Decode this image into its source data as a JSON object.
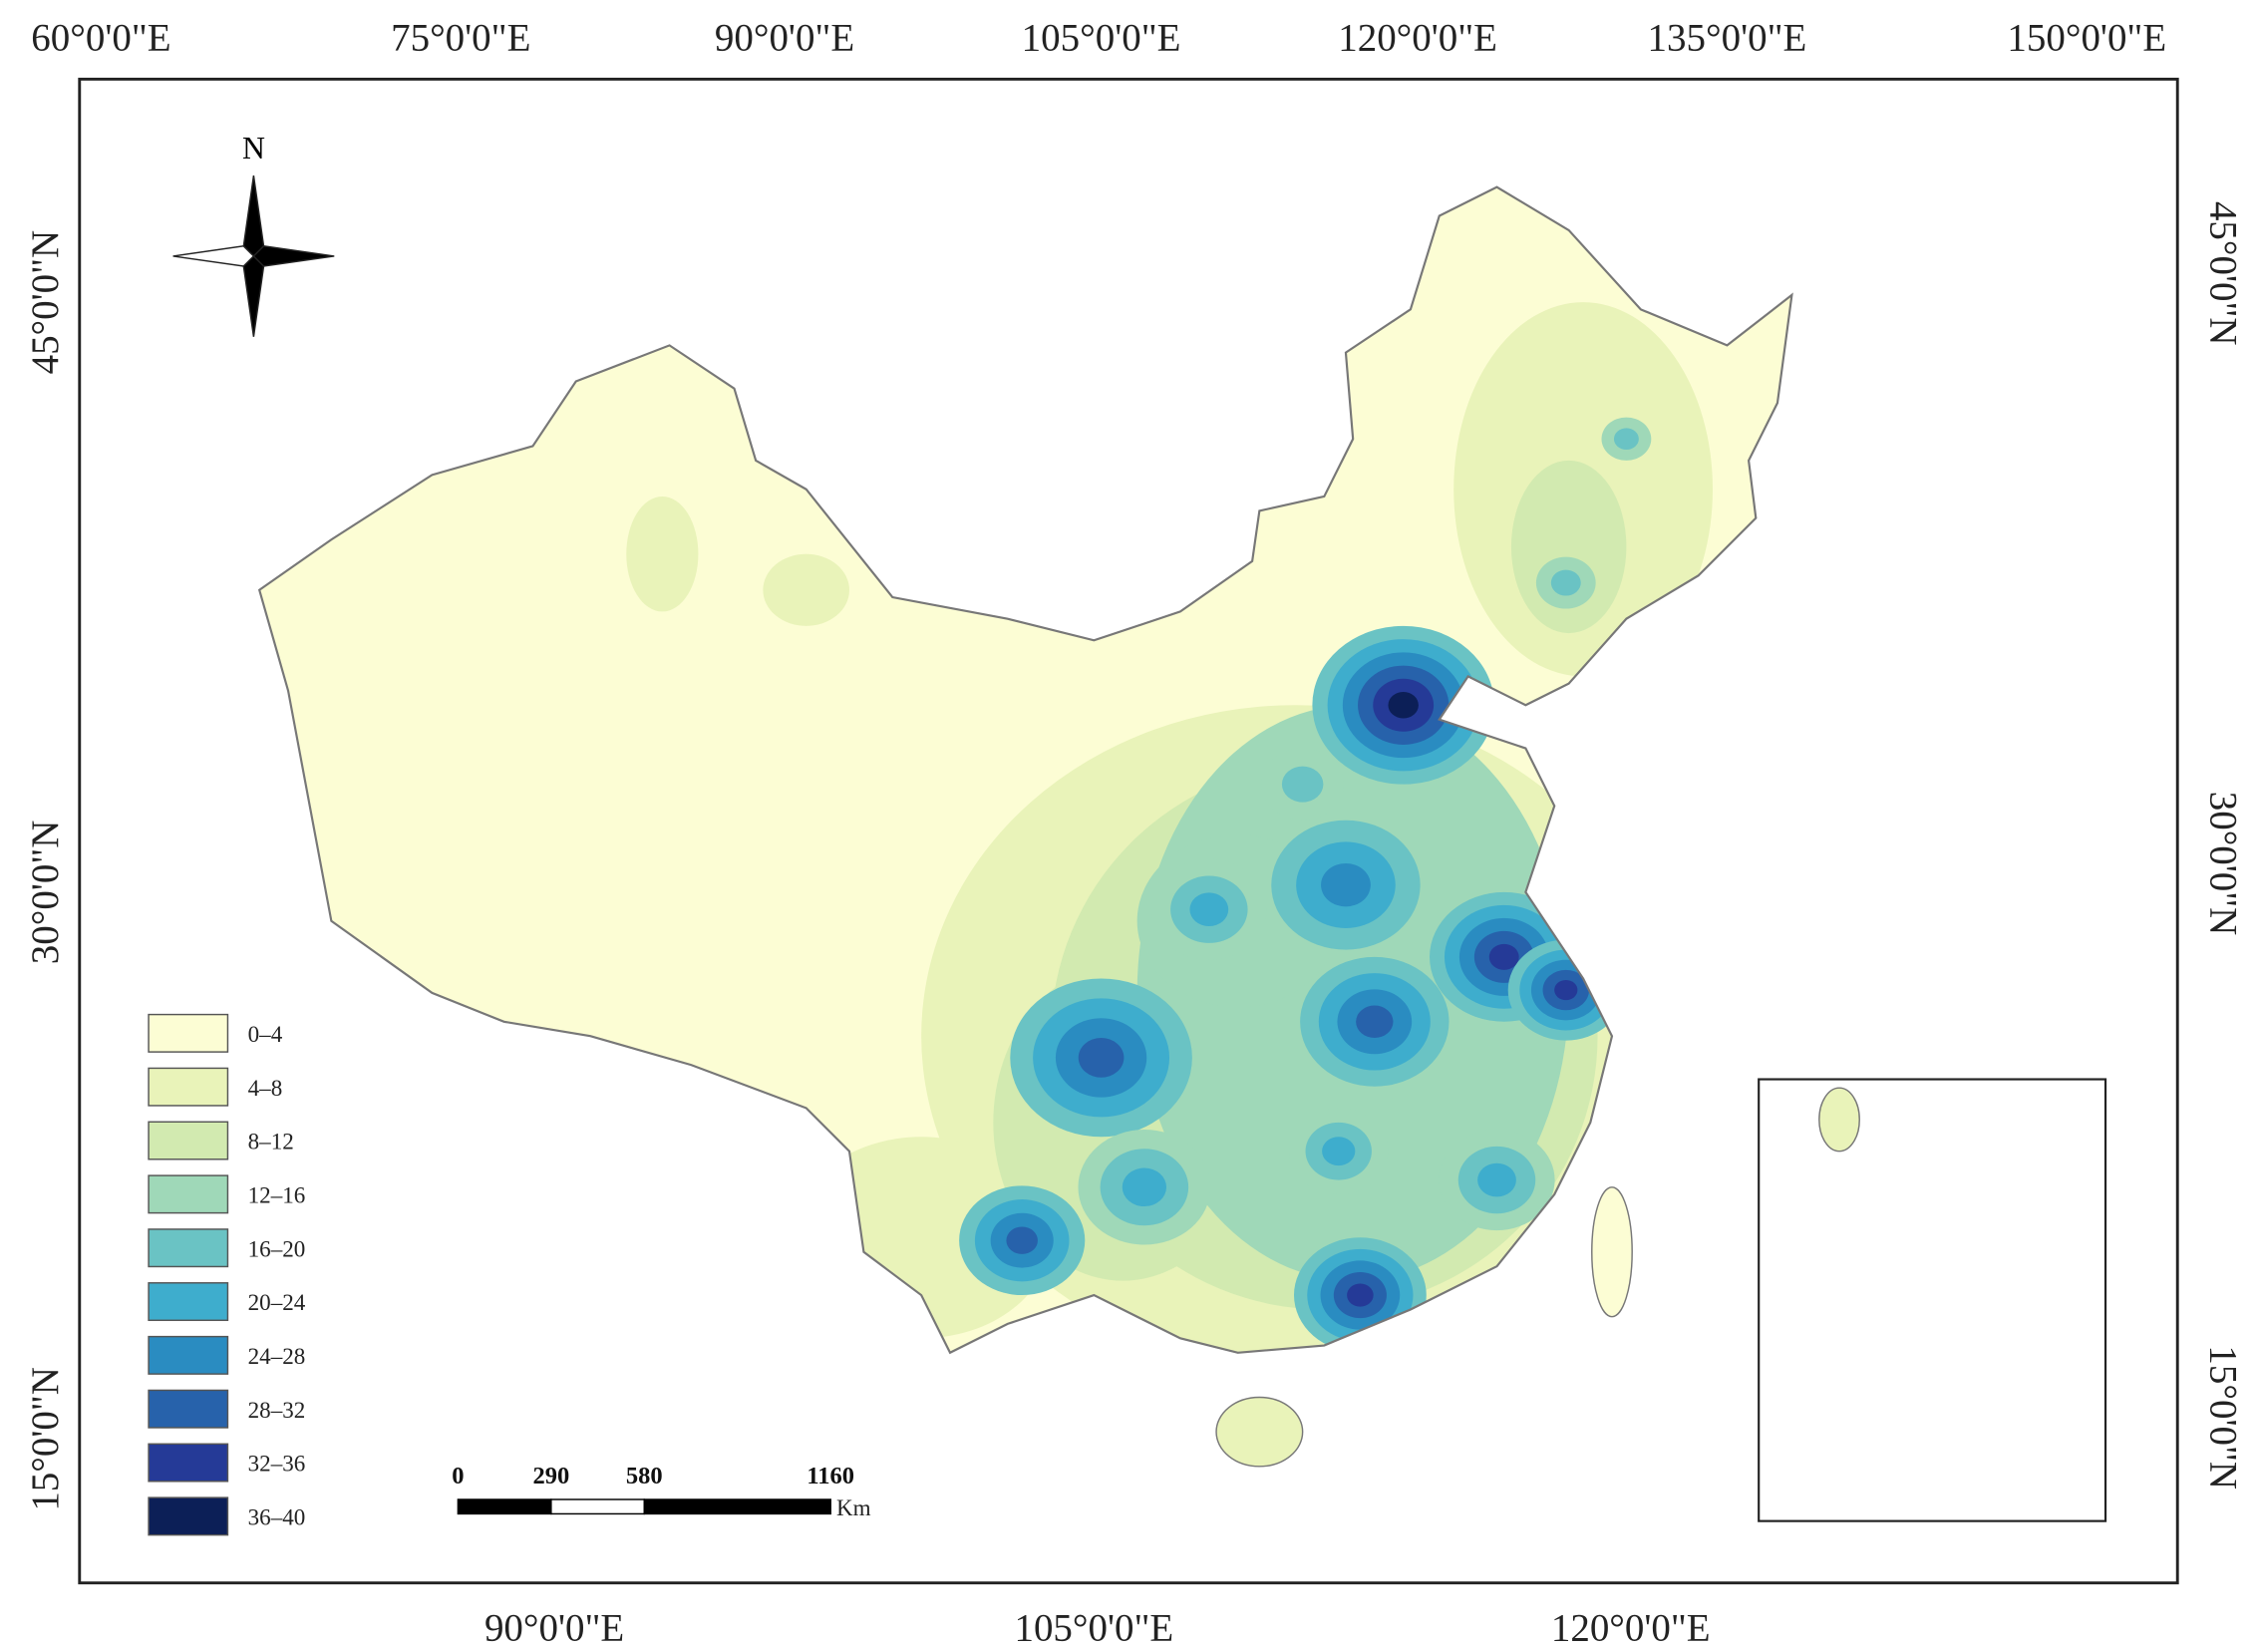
{
  "map": {
    "top_labels": [
      "60°0'0\"E",
      "75°0'0\"E",
      "90°0'0\"E",
      "105°0'0\"E",
      "120°0'0\"E",
      "135°0'0\"E",
      "150°0'0\"E"
    ],
    "bottom_labels": [
      "90°0'0\"E",
      "105°0'0\"E",
      "120°0'0\"E"
    ],
    "left_labels": [
      "45°0'0\"N",
      "30°0'0\"N",
      "15°0'0\"N"
    ],
    "right_labels": [
      "45°0'0\"N",
      "30°0'0\"N",
      "15°0'0\"N"
    ],
    "north": "N",
    "legend": [
      {
        "label": "0–4",
        "color": "#fcfdd4"
      },
      {
        "label": "4–8",
        "color": "#e9f3b9"
      },
      {
        "label": "8–12",
        "color": "#d2eab0"
      },
      {
        "label": "12–16",
        "color": "#9fd8b8"
      },
      {
        "label": "16–20",
        "color": "#6ac3c4"
      },
      {
        "label": "20–24",
        "color": "#3eadcd"
      },
      {
        "label": "24–28",
        "color": "#2a8cc1"
      },
      {
        "label": "28–32",
        "color": "#2762ab"
      },
      {
        "label": "32–36",
        "color": "#253a97"
      },
      {
        "label": "36–40",
        "color": "#0c1f57"
      }
    ],
    "scale_bar": {
      "ticks": [
        0,
        290,
        580,
        1160
      ],
      "unit": "Km"
    }
  }
}
